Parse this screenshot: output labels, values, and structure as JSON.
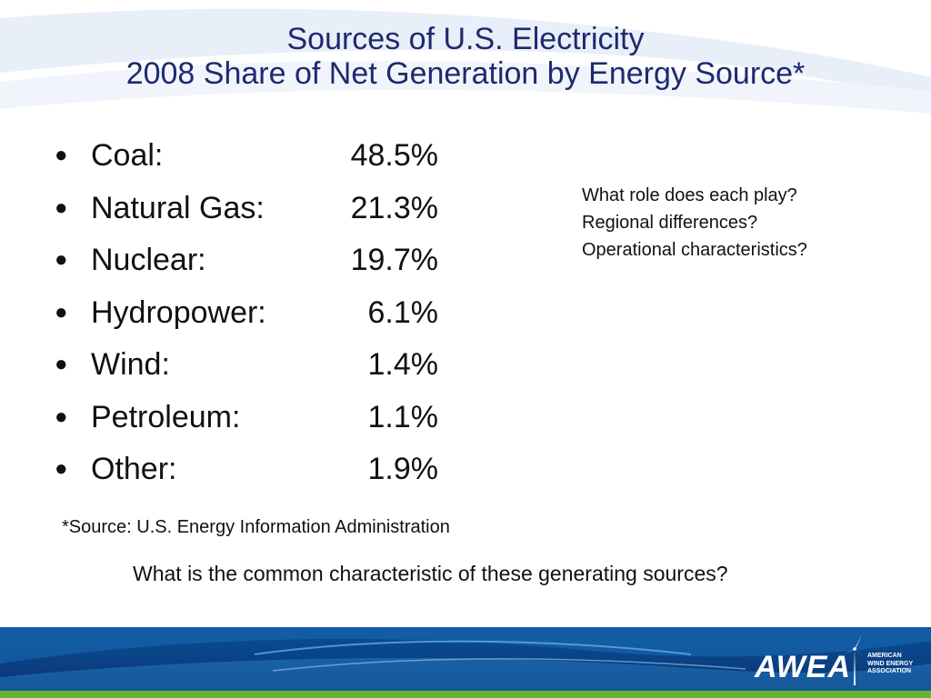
{
  "title": {
    "line1": "Sources of U.S. Electricity",
    "line2": "2008 Share of Net Generation by Energy Source*"
  },
  "bullet_glyph": "●",
  "sources": [
    {
      "label": "Coal:",
      "value": "48.5%"
    },
    {
      "label": "Natural Gas:",
      "value": "21.3%"
    },
    {
      "label": "Nuclear:",
      "value": "19.7%"
    },
    {
      "label": "Hydropower:",
      "value": "6.1%"
    },
    {
      "label": "Wind:",
      "value": "1.4%"
    },
    {
      "label": "Petroleum:",
      "value": "1.1%"
    },
    {
      "label": "Other:",
      "value": "1.9%"
    }
  ],
  "questions": [
    "What role does each play?",
    "Regional differences?",
    "Operational characteristics?"
  ],
  "source_note": "*Source: U.S. Energy Information Administration",
  "common_question": "What is the common characteristic of these generating sources?",
  "logo": {
    "wordmark": "AWEA",
    "subtitle_lines": [
      "AMERICAN",
      "WIND ENERGY",
      "ASSOCIATION"
    ],
    "icon": "wind-turbine-icon"
  },
  "colors": {
    "title": "#1e2a6e",
    "footer_blue": "#0b3f82",
    "footer_green": "#62b52b"
  }
}
